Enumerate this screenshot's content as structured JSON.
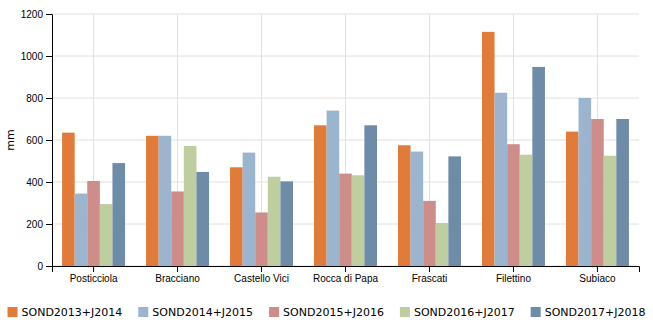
{
  "chart_data": {
    "type": "bar",
    "categories": [
      "Posticciola",
      "Bracciano",
      "Castello Vici",
      "Rocca di Papa",
      "Frascati",
      "Filettino",
      "Subiaco"
    ],
    "series": [
      {
        "name": "SOND2013+J2014",
        "color": "#E07B39",
        "values": [
          635,
          620,
          470,
          670,
          575,
          1115,
          640
        ]
      },
      {
        "name": "SOND2014+J2015",
        "color": "#9BB5CE",
        "values": [
          345,
          620,
          540,
          740,
          545,
          825,
          800
        ]
      },
      {
        "name": "SOND2015+J2016",
        "color": "#CF8D8A",
        "values": [
          405,
          355,
          255,
          440,
          310,
          580,
          700
        ]
      },
      {
        "name": "SOND2016+J2017",
        "color": "#BFCE9E",
        "values": [
          295,
          572,
          425,
          432,
          205,
          530,
          525
        ]
      },
      {
        "name": "SOND2017+J2018",
        "color": "#6E8BA8",
        "values": [
          490,
          448,
          403,
          670,
          522,
          948,
          700
        ]
      }
    ],
    "ylabel": "mm",
    "ylim": [
      0,
      1200
    ],
    "yticks": [
      0,
      200,
      400,
      600,
      800,
      1000,
      1200
    ],
    "grid": true,
    "legend": "bottom"
  }
}
